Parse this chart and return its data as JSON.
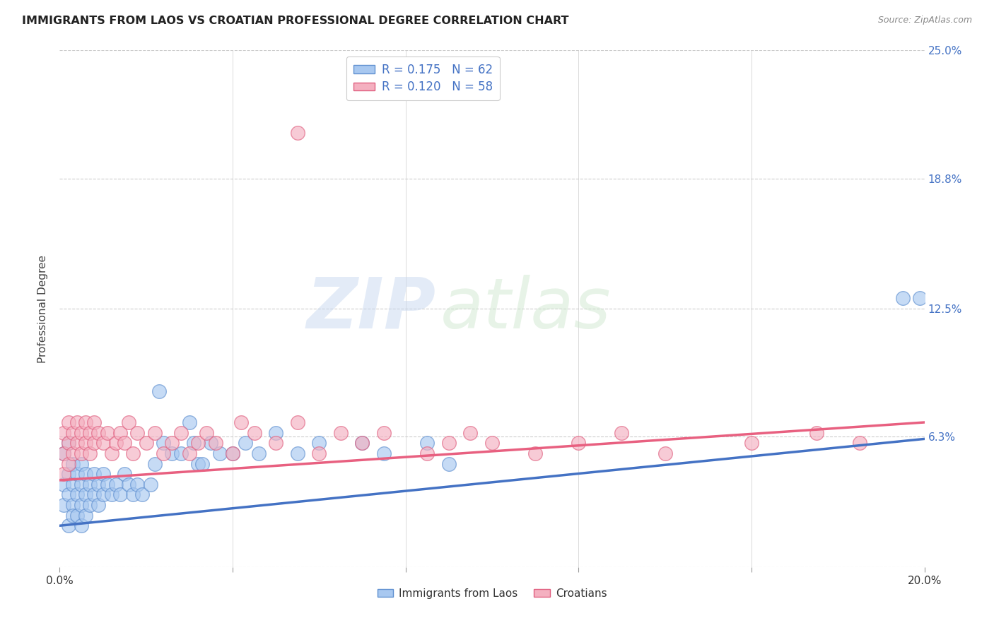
{
  "title": "IMMIGRANTS FROM LAOS VS CROATIAN PROFESSIONAL DEGREE CORRELATION CHART",
  "source": "Source: ZipAtlas.com",
  "ylabel": "Professional Degree",
  "xlim": [
    0.0,
    0.2
  ],
  "ylim": [
    0.0,
    0.25
  ],
  "ytick_labels_right": [
    "25.0%",
    "18.8%",
    "12.5%",
    "6.3%",
    ""
  ],
  "ytick_vals_right": [
    0.25,
    0.188,
    0.125,
    0.063,
    0.0
  ],
  "r_laos": 0.175,
  "n_laos": 62,
  "r_croatian": 0.12,
  "n_croatian": 58,
  "color_laos_fill": "#A8C8F0",
  "color_croatian_fill": "#F4B0C0",
  "color_laos_edge": "#6090D0",
  "color_croatian_edge": "#E06080",
  "color_laos_line": "#4472C4",
  "color_croatian_line": "#E86080",
  "color_text_blue": "#4472C4",
  "legend_label_laos": "Immigrants from Laos",
  "legend_label_croatian": "Croatians",
  "watermark": "ZIPatlas",
  "background": "#FFFFFF",
  "grid_color": "#CCCCCC",
  "trend_laos_start": 0.02,
  "trend_laos_end": 0.062,
  "trend_croatian_start": 0.042,
  "trend_croatian_end": 0.07,
  "scatter_laos_x": [
    0.001,
    0.001,
    0.001,
    0.002,
    0.002,
    0.002,
    0.002,
    0.003,
    0.003,
    0.003,
    0.003,
    0.004,
    0.004,
    0.004,
    0.005,
    0.005,
    0.005,
    0.005,
    0.006,
    0.006,
    0.006,
    0.007,
    0.007,
    0.008,
    0.008,
    0.009,
    0.009,
    0.01,
    0.01,
    0.011,
    0.012,
    0.013,
    0.014,
    0.015,
    0.016,
    0.017,
    0.018,
    0.019,
    0.021,
    0.022,
    0.023,
    0.024,
    0.026,
    0.028,
    0.03,
    0.031,
    0.032,
    0.033,
    0.035,
    0.037,
    0.04,
    0.043,
    0.046,
    0.05,
    0.055,
    0.06,
    0.07,
    0.075,
    0.085,
    0.09,
    0.195,
    0.199
  ],
  "scatter_laos_y": [
    0.04,
    0.055,
    0.03,
    0.045,
    0.06,
    0.035,
    0.02,
    0.05,
    0.04,
    0.03,
    0.025,
    0.045,
    0.035,
    0.025,
    0.05,
    0.04,
    0.03,
    0.02,
    0.045,
    0.035,
    0.025,
    0.04,
    0.03,
    0.045,
    0.035,
    0.04,
    0.03,
    0.045,
    0.035,
    0.04,
    0.035,
    0.04,
    0.035,
    0.045,
    0.04,
    0.035,
    0.04,
    0.035,
    0.04,
    0.05,
    0.085,
    0.06,
    0.055,
    0.055,
    0.07,
    0.06,
    0.05,
    0.05,
    0.06,
    0.055,
    0.055,
    0.06,
    0.055,
    0.065,
    0.055,
    0.06,
    0.06,
    0.055,
    0.06,
    0.05,
    0.13,
    0.13
  ],
  "scatter_croatian_x": [
    0.001,
    0.001,
    0.001,
    0.002,
    0.002,
    0.002,
    0.003,
    0.003,
    0.004,
    0.004,
    0.005,
    0.005,
    0.006,
    0.006,
    0.007,
    0.007,
    0.008,
    0.008,
    0.009,
    0.01,
    0.011,
    0.012,
    0.013,
    0.014,
    0.015,
    0.016,
    0.017,
    0.018,
    0.02,
    0.022,
    0.024,
    0.026,
    0.028,
    0.03,
    0.032,
    0.034,
    0.036,
    0.04,
    0.042,
    0.045,
    0.05,
    0.055,
    0.06,
    0.065,
    0.07,
    0.075,
    0.085,
    0.09,
    0.095,
    0.1,
    0.11,
    0.12,
    0.13,
    0.14,
    0.16,
    0.175,
    0.185,
    0.055
  ],
  "scatter_croatian_y": [
    0.055,
    0.065,
    0.045,
    0.06,
    0.05,
    0.07,
    0.055,
    0.065,
    0.06,
    0.07,
    0.055,
    0.065,
    0.06,
    0.07,
    0.055,
    0.065,
    0.06,
    0.07,
    0.065,
    0.06,
    0.065,
    0.055,
    0.06,
    0.065,
    0.06,
    0.07,
    0.055,
    0.065,
    0.06,
    0.065,
    0.055,
    0.06,
    0.065,
    0.055,
    0.06,
    0.065,
    0.06,
    0.055,
    0.07,
    0.065,
    0.06,
    0.07,
    0.055,
    0.065,
    0.06,
    0.065,
    0.055,
    0.06,
    0.065,
    0.06,
    0.055,
    0.06,
    0.065,
    0.055,
    0.06,
    0.065,
    0.06,
    0.21
  ]
}
